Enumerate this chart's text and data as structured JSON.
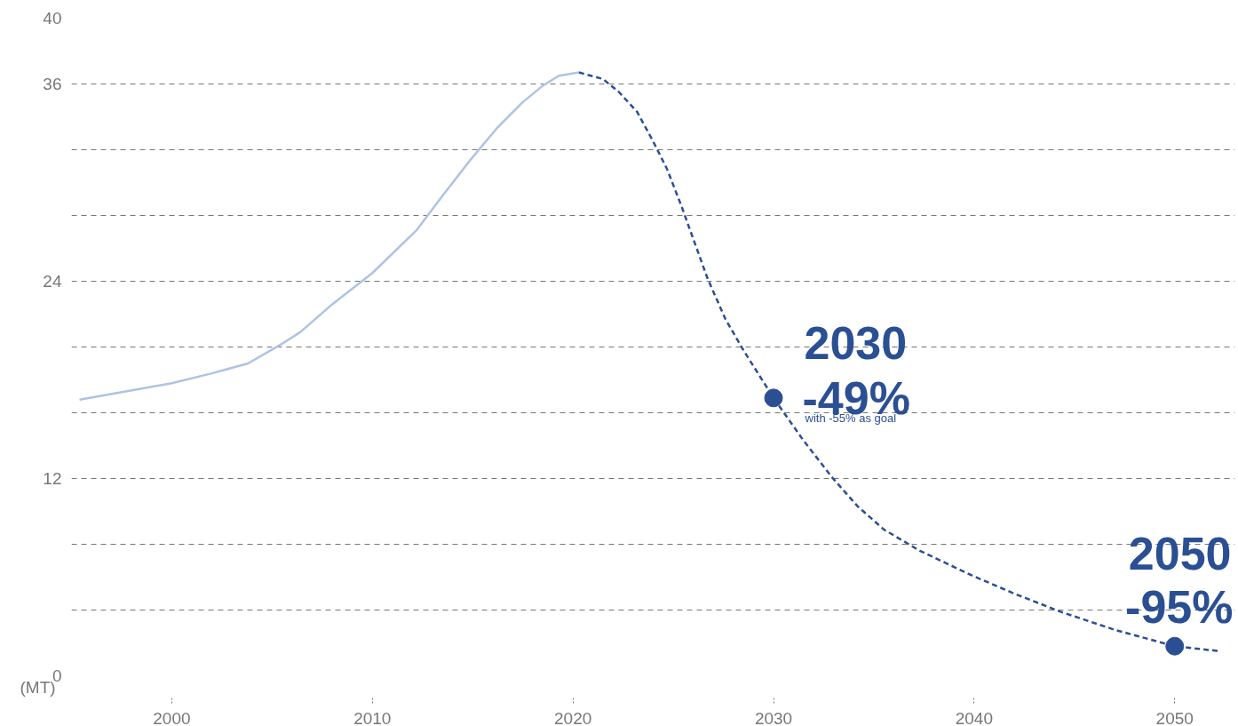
{
  "chart_data": {
    "type": "line",
    "ylabel": "(MT)",
    "xlim": [
      1995,
      2053
    ],
    "xticks": [
      2000,
      2010,
      2020,
      2030,
      2040,
      2050
    ],
    "ylim": [
      0,
      40
    ],
    "yticks": [
      0,
      {
        "value": 4,
        "label": null
      },
      {
        "value": 8,
        "label": null
      },
      12,
      {
        "value": 16,
        "label": null
      },
      {
        "value": 20,
        "label": null
      },
      24,
      {
        "value": 28,
        "label": null
      },
      {
        "value": 32,
        "label": null
      },
      36,
      40
    ],
    "grid": "y",
    "series": [
      {
        "line_style": "solid",
        "color": "#aec3e3",
        "x": [
          1995.4,
          2000,
          2002,
          2003.8,
          2005.5,
          2006.4,
          2008,
          2010,
          2012.2,
          2013.5,
          2014.9,
          2016.2,
          2017.5,
          2018.5,
          2019.3,
          2020.3
        ],
        "values": [
          16.8,
          17.8,
          18.4,
          19.0,
          20.2,
          20.9,
          22.6,
          24.5,
          27.1,
          29.2,
          31.4,
          33.3,
          34.9,
          35.9,
          36.5,
          36.7
        ]
      },
      {
        "line_style": "dashed",
        "color": "#2b4f93",
        "x": [
          2020.3,
          2021.5,
          2022.3,
          2023.2,
          2024,
          2024.7,
          2025.4,
          2026.7,
          2027.6,
          2028.5,
          2030,
          2031.5,
          2032.9,
          2034.2,
          2035.5,
          2037.3,
          2039.9,
          2042,
          2044.3,
          2047,
          2050,
          2052.25
        ],
        "values": [
          36.7,
          36.3,
          35.5,
          34.3,
          32.5,
          30.8,
          28.6,
          24.2,
          21.7,
          19.8,
          16.9,
          14.3,
          12.1,
          10.3,
          8.9,
          7.6,
          6.1,
          5.0,
          3.9,
          2.8,
          1.8,
          1.5
        ]
      },
      {
        "type": "scatter",
        "marker": "circle",
        "color": "#2b4f93",
        "x": [
          2030,
          2050
        ],
        "values": [
          16.9,
          1.8
        ]
      }
    ],
    "annotations": [
      "2030",
      "-49%",
      "with -55% as goal",
      "2050",
      "-95%"
    ]
  }
}
